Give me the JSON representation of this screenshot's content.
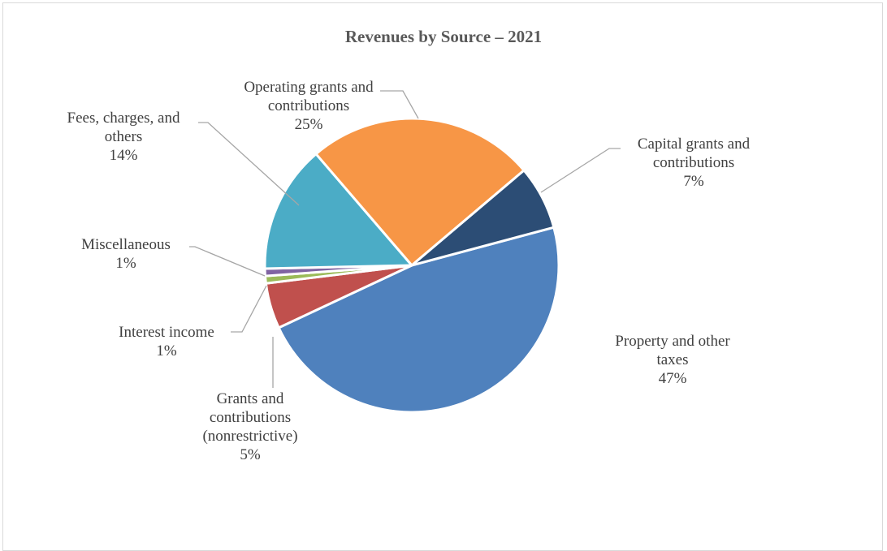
{
  "chart_data": {
    "type": "pie",
    "title": "Revenues by Source – 2021",
    "slices": [
      {
        "label": "Property and other taxes",
        "value": 47,
        "value_label": "47%",
        "color": "#4f81bd"
      },
      {
        "label": "Grants and contributions (nonrestrictive)",
        "value": 5,
        "value_label": "5%",
        "color": "#c0504d"
      },
      {
        "label": "Interest income",
        "value": 0.8,
        "value_label": "1%",
        "color": "#9bbb59"
      },
      {
        "label": "Miscellaneous",
        "value": 0.8,
        "value_label": "1%",
        "color": "#8064a2"
      },
      {
        "label": "Fees, charges, and others",
        "value": 14,
        "value_label": "14%",
        "color": "#4bacc6"
      },
      {
        "label": "Operating grants and contributions",
        "value": 25,
        "value_label": "25%",
        "color": "#f79646"
      },
      {
        "label": "Capital grants and contributions",
        "value": 7,
        "value_label": "7%",
        "color": "#2c4d75"
      }
    ],
    "data_labels": [
      {
        "lines": [
          "Property and other",
          "taxes",
          "47%"
        ]
      },
      {
        "lines": [
          "Grants and",
          "contributions",
          "(nonrestrictive)",
          "5%"
        ]
      },
      {
        "lines": [
          "Interest income",
          "1%"
        ]
      },
      {
        "lines": [
          "Miscellaneous",
          "1%"
        ]
      },
      {
        "lines": [
          "Fees, charges, and",
          "others",
          "14%"
        ]
      },
      {
        "lines": [
          "Operating grants and",
          "contributions",
          "25%"
        ]
      },
      {
        "lines": [
          "Capital grants and",
          "contributions",
          "7%"
        ]
      }
    ],
    "legend": "none"
  }
}
